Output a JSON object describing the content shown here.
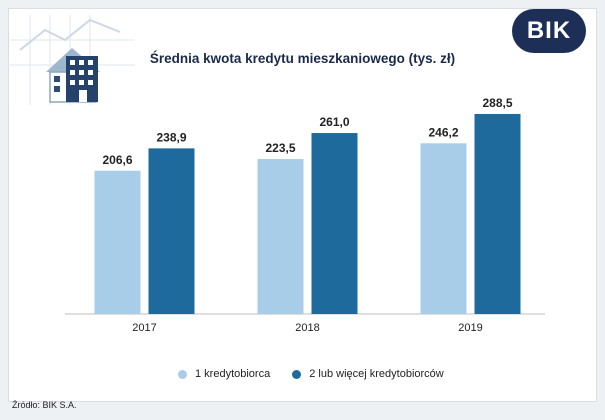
{
  "brand": {
    "text": "BIK",
    "color": "#1e2f57"
  },
  "source": "Źródło: BIK S.A.",
  "illustration": {
    "icon": "house-building-icon"
  },
  "chart_data": {
    "type": "bar",
    "title": "Średnia kwota kredytu mieszkaniowego (tys. zł)",
    "categories": [
      "2017",
      "2018",
      "2019"
    ],
    "series": [
      {
        "name": "1 kredytobiorca",
        "values": [
          206.6,
          223.5,
          246.2
        ],
        "labels": [
          "206,6",
          "223,5",
          "246,2"
        ],
        "color": "#a8cde9"
      },
      {
        "name": "2 lub więcej kredytobiorców",
        "values": [
          238.9,
          261.0,
          288.5
        ],
        "labels": [
          "238,9",
          "261,0",
          "288,5"
        ],
        "color": "#1e6a9c"
      }
    ],
    "ylim": [
      0,
      300
    ],
    "grid": false,
    "legend_position": "bottom"
  }
}
